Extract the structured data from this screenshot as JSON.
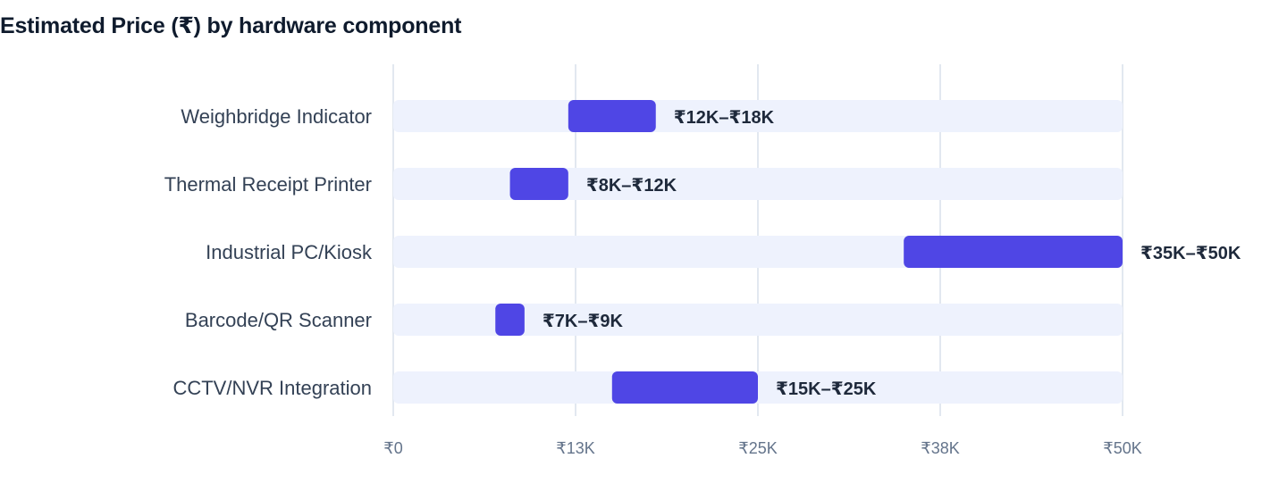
{
  "chart_data": {
    "type": "bar",
    "title": "Estimated Price (₹) by hardware component",
    "orientation": "horizontal-floating-range",
    "categories": [
      "Weighbridge Indicator",
      "Thermal Receipt Printer",
      "Industrial PC/Kiosk",
      "Barcode/QR Scanner",
      "CCTV/NVR Integration"
    ],
    "series": [
      {
        "low": [
          12000,
          8000,
          35000,
          7000,
          15000
        ],
        "high": [
          18000,
          12000,
          50000,
          9000,
          25000
        ],
        "labels": [
          "₹12K–₹18K",
          "₹8K–₹12K",
          "₹35K–₹50K",
          "₹7K–₹9K",
          "₹15K–₹25K"
        ]
      }
    ],
    "xlim": [
      0,
      50000
    ],
    "xticks": [
      0,
      12500,
      25000,
      37500,
      50000
    ],
    "xtick_labels": [
      "₹0",
      "₹13K",
      "₹25K",
      "₹38K",
      "₹50K"
    ],
    "xlabel": "",
    "ylabel": "",
    "grid": true,
    "colors": {
      "bar": "#4f46e5",
      "track": "#eef2fd",
      "grid": "#e2e8f0"
    }
  }
}
